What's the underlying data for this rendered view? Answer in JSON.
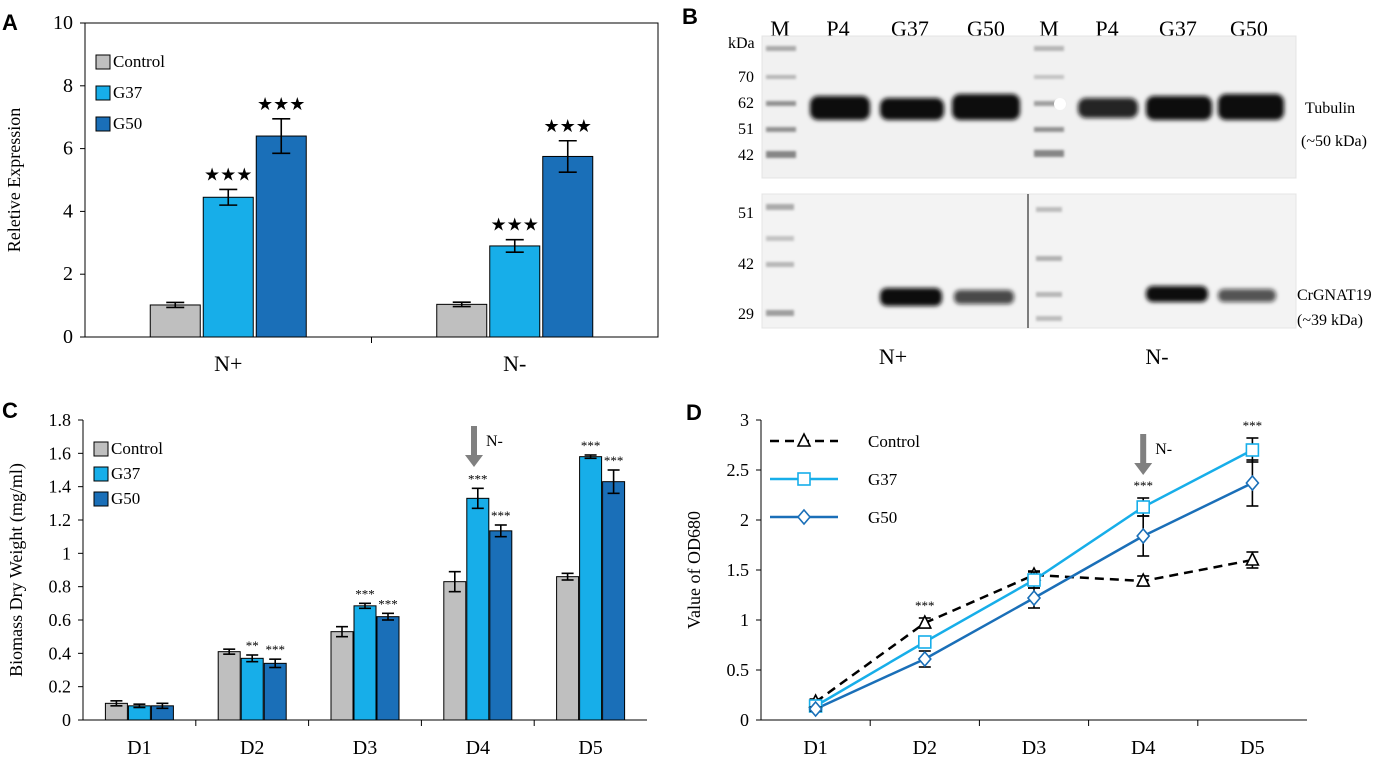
{
  "chart_data": [
    {
      "panel": "A",
      "type": "bar",
      "ylabel": "Reletive Expression",
      "ylim": [
        0,
        10
      ],
      "yticks": [
        0,
        2,
        4,
        6,
        8,
        10
      ],
      "categories": [
        "N+",
        "N-"
      ],
      "series": [
        {
          "name": "Control",
          "color": "#bfbfbf",
          "values": [
            1.02,
            1.04
          ],
          "errors": [
            0.08,
            0.07
          ],
          "sig": [
            "",
            ""
          ]
        },
        {
          "name": "G37",
          "color": "#17aee9",
          "values": [
            4.45,
            2.9
          ],
          "errors": [
            0.25,
            0.2
          ],
          "sig": [
            "★★★",
            "★★★"
          ]
        },
        {
          "name": "G50",
          "color": "#1a6fb8",
          "values": [
            6.4,
            5.75
          ],
          "errors": [
            0.55,
            0.5
          ],
          "sig": [
            "★★★",
            "★★★"
          ]
        }
      ],
      "legend": "top-left"
    },
    {
      "panel": "C",
      "type": "bar",
      "ylabel": "Biomass Dry Weight (mg/ml)",
      "ylim": [
        0,
        1.8
      ],
      "yticks": [
        0,
        0.2,
        0.4,
        0.6,
        0.8,
        1,
        1.2,
        1.4,
        1.6,
        1.8
      ],
      "categories": [
        "D1",
        "D2",
        "D3",
        "D4",
        "D5"
      ],
      "series": [
        {
          "name": "Control",
          "color": "#bfbfbf",
          "values": [
            0.1,
            0.41,
            0.53,
            0.83,
            0.86
          ],
          "errors": [
            0.015,
            0.015,
            0.03,
            0.06,
            0.02
          ],
          "sig": [
            "",
            "",
            "",
            "",
            ""
          ]
        },
        {
          "name": "G37",
          "color": "#17aee9",
          "values": [
            0.085,
            0.37,
            0.685,
            1.33,
            1.58
          ],
          "errors": [
            0.01,
            0.02,
            0.015,
            0.06,
            0.01
          ],
          "sig": [
            "",
            "**",
            "***",
            "***",
            "***"
          ]
        },
        {
          "name": "G50",
          "color": "#1a6fb8",
          "values": [
            0.085,
            0.34,
            0.62,
            1.135,
            1.43
          ],
          "errors": [
            0.015,
            0.025,
            0.02,
            0.035,
            0.07
          ],
          "sig": [
            "",
            "***",
            "***",
            "***",
            "***"
          ]
        }
      ],
      "annotation": {
        "text": "N-",
        "at": "D4"
      },
      "legend": "top-left"
    },
    {
      "panel": "D",
      "type": "line",
      "ylabel": "Value of OD680",
      "ylim": [
        0,
        3
      ],
      "yticks": [
        0,
        0.5,
        1,
        1.5,
        2,
        2.5,
        3
      ],
      "categories": [
        "D1",
        "D2",
        "D3",
        "D4",
        "D5"
      ],
      "series": [
        {
          "name": "Control",
          "color": "#000000",
          "marker": "triangle",
          "dashed": true,
          "values": [
            0.18,
            0.97,
            1.45,
            1.39,
            1.6
          ],
          "errors": [
            0.03,
            0.05,
            0.04,
            0.05,
            0.08
          ]
        },
        {
          "name": "G37",
          "color": "#17aee9",
          "marker": "square",
          "dashed": false,
          "values": [
            0.14,
            0.78,
            1.4,
            2.13,
            2.7
          ],
          "errors": [
            0.02,
            0.05,
            0.08,
            0.09,
            0.12
          ]
        },
        {
          "name": "G50",
          "color": "#1a6fb8",
          "marker": "diamond",
          "dashed": false,
          "values": [
            0.11,
            0.61,
            1.22,
            1.84,
            2.37
          ],
          "errors": [
            0.02,
            0.08,
            0.1,
            0.2,
            0.23
          ]
        }
      ],
      "sig": [
        {
          "category": "D2",
          "text": "***"
        },
        {
          "category": "D4",
          "text": "***"
        },
        {
          "category": "D5",
          "text": "***"
        }
      ],
      "annotation": {
        "text": "N-",
        "at": "D4"
      },
      "legend": "top-left"
    }
  ],
  "panels": {
    "A": {
      "label": "A"
    },
    "B": {
      "label": "B",
      "kda_label": "kDa",
      "lanes": [
        "M",
        "P4",
        "G37",
        "G50",
        "M",
        "P4",
        "G37",
        "G50"
      ],
      "top_markers": [
        "70",
        "62",
        "51",
        "42"
      ],
      "bottom_markers": [
        "51",
        "42",
        "29"
      ],
      "top_protein": "Tubulin",
      "top_size": "(~50 kDa)",
      "bottom_protein": "CrGNAT19",
      "bottom_size": "(~39 kDa)",
      "groups": [
        "N+",
        "N-"
      ]
    },
    "C": {
      "label": "C"
    },
    "D": {
      "label": "D"
    }
  }
}
